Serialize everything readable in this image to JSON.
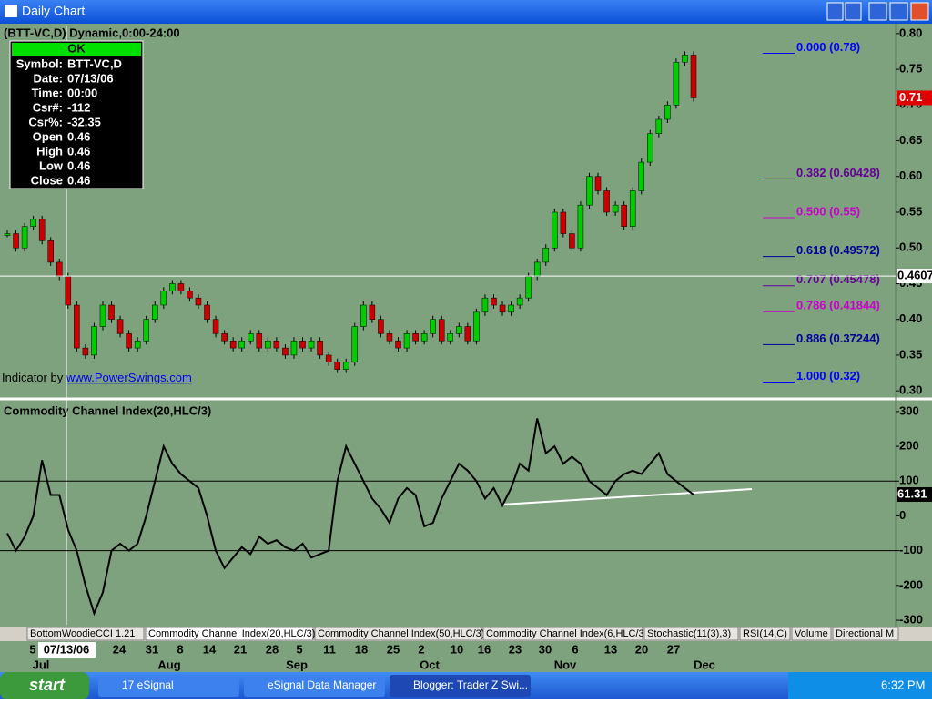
{
  "window": {
    "title": "Daily Chart"
  },
  "chart_data": [
    {
      "type": "candlestick",
      "title": "(BTT-VC,D) Dynamic,0:00-24:00",
      "values": [
        0.52,
        0.5,
        0.53,
        0.54,
        0.51,
        0.48,
        0.46,
        0.42,
        0.36,
        0.35,
        0.39,
        0.42,
        0.4,
        0.38,
        0.36,
        0.37,
        0.4,
        0.42,
        0.44,
        0.45,
        0.44,
        0.43,
        0.42,
        0.4,
        0.38,
        0.37,
        0.36,
        0.37,
        0.38,
        0.36,
        0.37,
        0.36,
        0.35,
        0.37,
        0.36,
        0.37,
        0.35,
        0.34,
        0.33,
        0.34,
        0.39,
        0.42,
        0.4,
        0.38,
        0.37,
        0.36,
        0.38,
        0.37,
        0.38,
        0.4,
        0.37,
        0.38,
        0.39,
        0.37,
        0.41,
        0.43,
        0.42,
        0.41,
        0.42,
        0.43,
        0.46,
        0.48,
        0.5,
        0.55,
        0.52,
        0.5,
        0.56,
        0.6,
        0.58,
        0.55,
        0.56,
        0.53,
        0.58,
        0.62,
        0.66,
        0.68,
        0.7,
        0.76,
        0.77,
        0.71
      ],
      "up_color": "#00cc00",
      "down_color": "#cc0000",
      "ylim": [
        0.29,
        0.81
      ],
      "yticks": [
        {
          "value": 0.8,
          "label": "0.80"
        },
        0.75,
        {
          "value": 0.7,
          "label": "0.70"
        },
        0.65,
        {
          "value": 0.6,
          "label": "0.60"
        },
        0.55,
        {
          "value": 0.5,
          "label": "0.50"
        },
        0.45,
        {
          "value": 0.4,
          "label": "0.40"
        },
        0.35,
        {
          "value": 0.3,
          "label": "0.30"
        }
      ],
      "marker_line": 0.4607,
      "fib_levels": [
        {
          "label": "0.000 (0.78)",
          "value": 0.78,
          "color": "#0000ff"
        },
        {
          "label": "0.382 (0.60428)",
          "value": 0.60428,
          "color": "#660099"
        },
        {
          "label": "0.500 (0.55)",
          "value": 0.55,
          "color": "#cc00cc"
        },
        {
          "label": "0.618 (0.49572)",
          "value": 0.49572,
          "color": "#000099"
        },
        {
          "label": "0.707 (0.45478)",
          "value": 0.45478,
          "color": "#660099"
        },
        {
          "label": "0.786 (0.41844)",
          "value": 0.41844,
          "color": "#cc00cc"
        },
        {
          "label": "0.886 (0.37244)",
          "value": 0.37244,
          "color": "#000099"
        },
        {
          "label": "1.000 (0.32)",
          "value": 0.32,
          "color": "#0000ff"
        }
      ],
      "annotation_prefix": "Indicator by ",
      "annotation_link": "www.PowerSwings.com"
    },
    {
      "type": "line",
      "title": "Commodity Channel Index(20,HLC/3)",
      "values": [
        -50,
        -100,
        -60,
        0,
        160,
        60,
        60,
        -40,
        -100,
        -200,
        -280,
        -220,
        -100,
        -80,
        -100,
        -80,
        0,
        100,
        200,
        150,
        120,
        100,
        80,
        0,
        -100,
        -150,
        -120,
        -90,
        -110,
        -60,
        -80,
        -70,
        -90,
        -100,
        -80,
        -120,
        -110,
        -100,
        100,
        200,
        150,
        100,
        50,
        20,
        -20,
        50,
        80,
        60,
        -30,
        -20,
        50,
        100,
        150,
        130,
        100,
        50,
        80,
        30,
        80,
        150,
        130,
        280,
        180,
        200,
        150,
        170,
        150,
        100,
        80,
        60,
        100,
        120,
        130,
        120,
        150,
        180,
        120,
        100,
        80,
        61.31
      ],
      "color": "#000000",
      "ylim": [
        -313,
        331
      ],
      "yticks": [
        300,
        200,
        100,
        0,
        -100,
        -200,
        -300
      ],
      "reference_lines": [
        100,
        -100
      ]
    }
  ],
  "info_box": {
    "status": "OK",
    "rows": [
      [
        "Symbol:",
        "BTT-VC,D"
      ],
      [
        "Date:",
        "07/13/06"
      ],
      [
        "Time:",
        "00:00"
      ],
      [
        "Csr#:",
        "-112"
      ],
      [
        "Csr%:",
        "-32.35"
      ],
      [
        "Open",
        "0.46"
      ],
      [
        "High",
        "0.46"
      ],
      [
        "Low",
        "0.46"
      ],
      [
        "Close",
        "0.46"
      ]
    ]
  },
  "tabs": [
    "BottomWoodieCCI 1.21",
    "Commodity Channel Index(20,HLC/3)",
    "Commodity Channel Index(50,HLC/3)",
    "Commodity Channel Index(6,HLC/3)",
    "Stochastic(11(3),3)",
    "RSI(14,C)",
    "Volume",
    "Directional M"
  ],
  "date_axis": {
    "days": [
      "5",
      "07/13/06",
      "24",
      "31",
      "8",
      "14",
      "21",
      "28",
      "5",
      "11",
      "18",
      "25",
      "2",
      "10",
      "16",
      "23",
      "30",
      "6",
      "13",
      "20",
      "27"
    ],
    "months": [
      "Jul",
      "Aug",
      "Sep",
      "Oct",
      "Nov",
      "Dec"
    ]
  },
  "taskbar": {
    "start": "start",
    "buttons": [
      "17 eSignal",
      "eSignal Data Manager",
      "Blogger: Trader Z Swi..."
    ],
    "clock": "6:32 PM"
  }
}
